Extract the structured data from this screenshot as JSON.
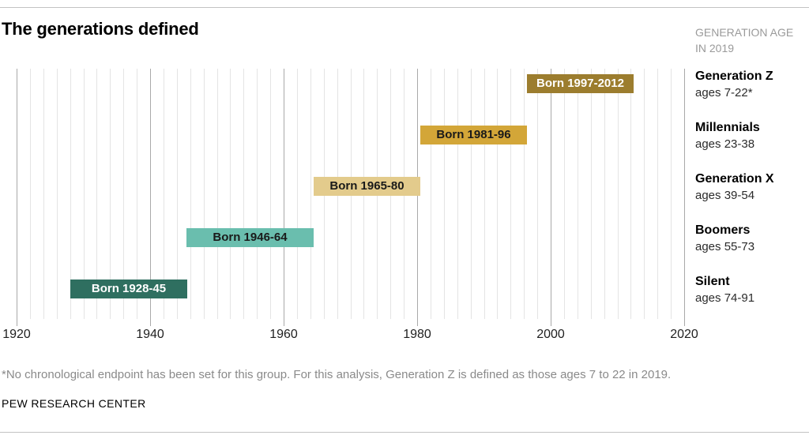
{
  "header": {
    "title": "The generations defined",
    "right_note": [
      "GENERATION AGE",
      "IN 2019"
    ]
  },
  "chart_data": {
    "type": "bar",
    "subtype": "horizontal-timeline",
    "title": "The generations defined",
    "x_axis": {
      "min": 1920,
      "max": 2020,
      "major_tick_interval": 20,
      "gridline_interval": 2,
      "gridline_end": 2018,
      "tick_years": [
        1920,
        1940,
        1960,
        1980,
        2000,
        2020
      ],
      "tick_labels": [
        "1920",
        "1940",
        "1960",
        "1980",
        "2000",
        "2020"
      ]
    },
    "legend_position": "right",
    "rows": [
      {
        "generation": "Generation Z",
        "age_label": "ages 7-22*",
        "bar_label": "Born 1997-2012",
        "birth_start": 1997,
        "birth_end": 2012,
        "bar_span": [
          1996.5,
          2012.5
        ],
        "bar_color": "#9C7D2E",
        "bar_text_color": "#FFFFFF"
      },
      {
        "generation": "Millennials",
        "age_label": "ages 23-38",
        "bar_label": "Born 1981-96",
        "birth_start": 1981,
        "birth_end": 1996,
        "bar_span": [
          1980.5,
          1996.5
        ],
        "bar_color": "#D3A638",
        "bar_text_color": "#1A1A1A"
      },
      {
        "generation": "Generation X",
        "age_label": "ages 39-54",
        "bar_label": "Born 1965-80",
        "birth_start": 1965,
        "birth_end": 1980,
        "bar_span": [
          1964.5,
          1980.5
        ],
        "bar_color": "#E3CB8C",
        "bar_text_color": "#1A1A1A"
      },
      {
        "generation": "Boomers",
        "age_label": "ages 55-73",
        "bar_label": "Born 1946-64",
        "birth_start": 1946,
        "birth_end": 1964,
        "bar_span": [
          1945.5,
          1964.5
        ],
        "bar_color": "#6ABEAE",
        "bar_text_color": "#1A1A1A"
      },
      {
        "generation": "Silent",
        "age_label": "ages 74-91",
        "bar_label": "Born 1928-45",
        "birth_start": 1928,
        "birth_end": 1945,
        "bar_span": [
          1928.0,
          1945.5
        ],
        "bar_color": "#2F6F60",
        "bar_text_color": "#FFFFFF"
      }
    ],
    "colors": {
      "gridline_minor": "#E4E4E4",
      "gridline_major": "#A9A9A9"
    }
  },
  "footer": {
    "footnote": "*No chronological endpoint has been set for this group. For this analysis, Generation Z is defined as those ages 7 to 22 in 2019.",
    "source": "PEW RESEARCH CENTER"
  }
}
